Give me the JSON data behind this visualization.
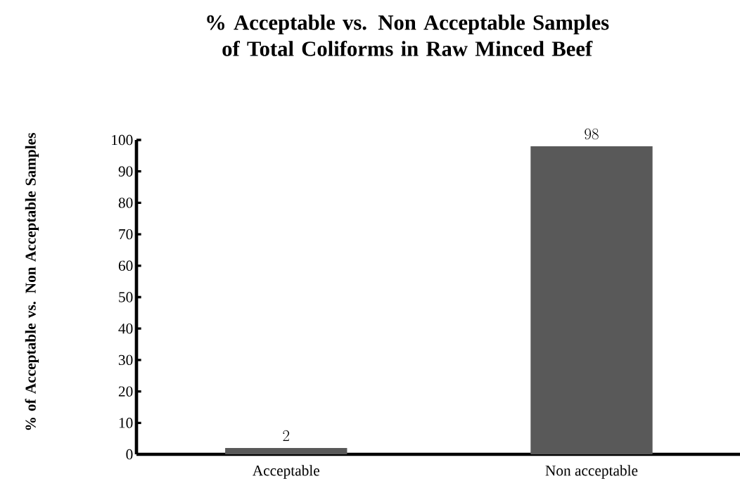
{
  "chart_data": {
    "type": "bar",
    "title": "% Acceptable vs. Non Acceptable Samples of Total Coliforms in Raw Minced Beef",
    "ylabel": "% of Acceptable vs. Non Acceptable Samples",
    "categories": [
      "Acceptable",
      "Non acceptable"
    ],
    "values": [
      2,
      98
    ],
    "color": "#595959",
    "ylim": [
      0,
      100
    ],
    "yticks": [
      0,
      10,
      20,
      30,
      40,
      50,
      60,
      70,
      80,
      90,
      100
    ],
    "data_labels": true,
    "grid": false
  }
}
